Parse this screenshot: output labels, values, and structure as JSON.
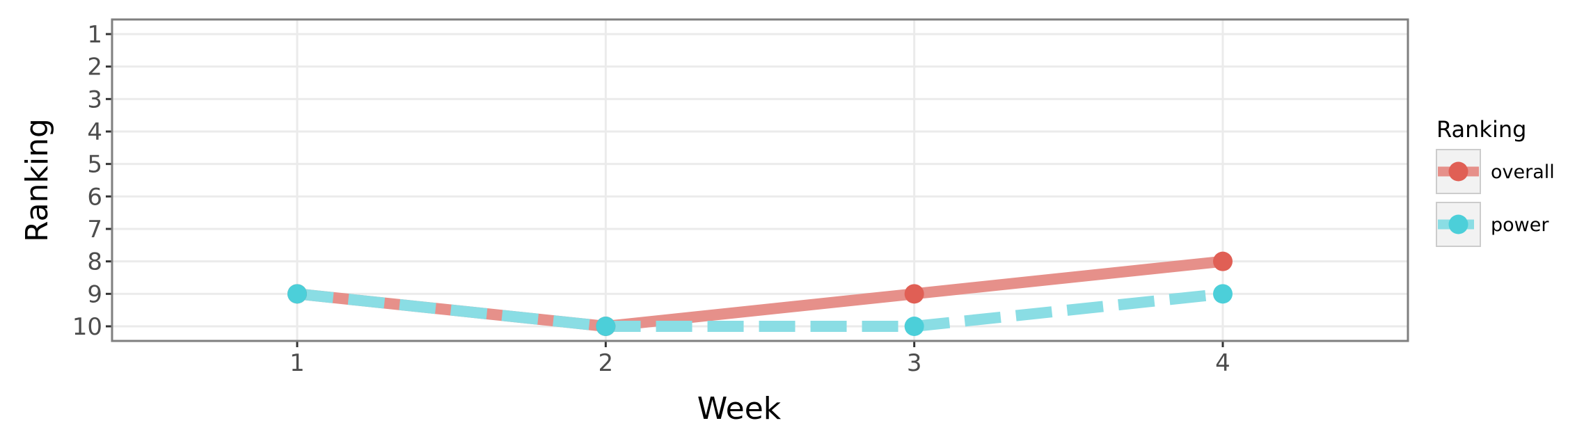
{
  "chart_data": {
    "type": "line",
    "title": "",
    "xlabel": "Week",
    "ylabel": "Ranking",
    "x": [
      1,
      2,
      3,
      4
    ],
    "x_ticks": [
      "1",
      "2",
      "3",
      "4"
    ],
    "xlim": [
      0.4,
      4.6
    ],
    "y_ticks": [
      "1",
      "2",
      "3",
      "4",
      "5",
      "6",
      "7",
      "8",
      "9",
      "10"
    ],
    "ylim": [
      0.55,
      10.45
    ],
    "y_reversed": true,
    "grid": true,
    "legend": {
      "title": "Ranking",
      "placement": "right"
    },
    "series": [
      {
        "name": "overall",
        "values": [
          9,
          10,
          9,
          8
        ],
        "color": "#e05f55",
        "line_color": "#e6908a",
        "dash": "solid"
      },
      {
        "name": "power",
        "values": [
          9,
          10,
          10,
          9
        ],
        "color": "#4ccfd9",
        "line_color": "#8adde4",
        "dash": "dashed"
      }
    ]
  }
}
